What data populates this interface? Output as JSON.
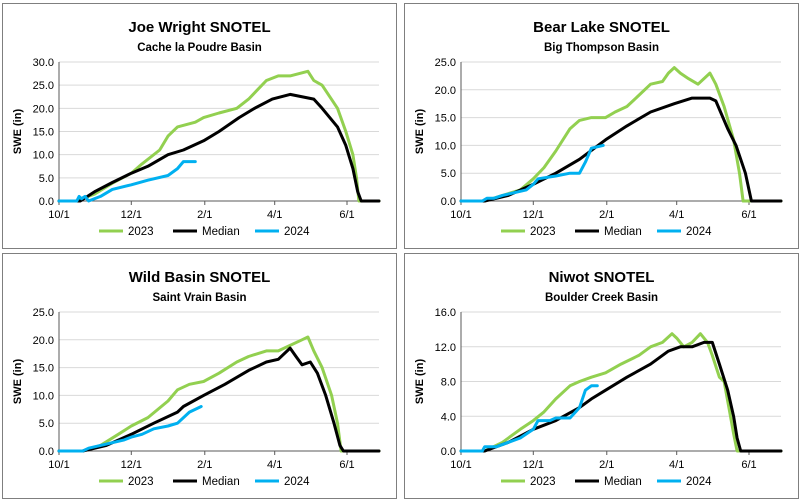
{
  "chart_data": [
    {
      "type": "line",
      "title": "Joe Wright SNOTEL",
      "subtitle": "Cache la Poudre Basin",
      "ylabel": "SWE (in)",
      "ylim": [
        0,
        30
      ],
      "yticks": [
        "0.0",
        "5.0",
        "10.0",
        "15.0",
        "20.0",
        "25.0",
        "30.0"
      ],
      "xlabels": [
        "10/1",
        "12/1",
        "2/1",
        "4/1",
        "6/1"
      ],
      "series": [
        {
          "name": "2023",
          "color": "#92d050",
          "points": [
            [
              0,
              0
            ],
            [
              14,
              0
            ],
            [
              30,
              1.5
            ],
            [
              46,
              4
            ],
            [
              61,
              6
            ],
            [
              70,
              8
            ],
            [
              85,
              11
            ],
            [
              92,
              14
            ],
            [
              100,
              16
            ],
            [
              115,
              17
            ],
            [
              122,
              18
            ],
            [
              135,
              19
            ],
            [
              150,
              20
            ],
            [
              160,
              22
            ],
            [
              175,
              26
            ],
            [
              185,
              27
            ],
            [
              195,
              27
            ],
            [
              210,
              28
            ],
            [
              215,
              26
            ],
            [
              222,
              25
            ],
            [
              235,
              20
            ],
            [
              242,
              15
            ],
            [
              248,
              10
            ],
            [
              251,
              5
            ],
            [
              253,
              0
            ],
            [
              270,
              0
            ]
          ]
        },
        {
          "name": "Median",
          "color": "#000000",
          "points": [
            [
              0,
              0
            ],
            [
              18,
              0
            ],
            [
              30,
              2
            ],
            [
              45,
              4
            ],
            [
              61,
              6
            ],
            [
              75,
              7.5
            ],
            [
              92,
              10
            ],
            [
              105,
              11
            ],
            [
              122,
              13
            ],
            [
              135,
              15
            ],
            [
              152,
              18
            ],
            [
              165,
              20
            ],
            [
              180,
              22
            ],
            [
              195,
              23
            ],
            [
              215,
              22
            ],
            [
              222,
              20
            ],
            [
              235,
              16
            ],
            [
              242,
              12
            ],
            [
              248,
              7
            ],
            [
              252,
              2
            ],
            [
              255,
              0
            ],
            [
              270,
              0
            ]
          ]
        },
        {
          "name": "2024",
          "color": "#00b0f0",
          "points": [
            [
              0,
              0
            ],
            [
              15,
              0
            ],
            [
              17,
              1
            ],
            [
              19,
              0.5
            ],
            [
              22,
              1
            ],
            [
              25,
              0
            ],
            [
              35,
              1
            ],
            [
              45,
              2.5
            ],
            [
              61,
              3.5
            ],
            [
              75,
              4.5
            ],
            [
              92,
              5.5
            ],
            [
              100,
              7
            ],
            [
              105,
              8.5
            ],
            [
              115,
              8.5
            ]
          ]
        }
      ]
    },
    {
      "type": "line",
      "title": "Bear Lake SNOTEL",
      "subtitle": "Big Thompson Basin",
      "ylabel": "SWE (in)",
      "ylim": [
        0,
        25
      ],
      "yticks": [
        "0.0",
        "5.0",
        "10.0",
        "15.0",
        "20.0",
        "25.0"
      ],
      "xlabels": [
        "10/1",
        "12/1",
        "2/1",
        "4/1",
        "6/1"
      ],
      "series": [
        {
          "name": "2023",
          "color": "#92d050",
          "points": [
            [
              0,
              0
            ],
            [
              20,
              0
            ],
            [
              35,
              1
            ],
            [
              50,
              2
            ],
            [
              61,
              4
            ],
            [
              70,
              6
            ],
            [
              80,
              9
            ],
            [
              92,
              13
            ],
            [
              100,
              14.5
            ],
            [
              110,
              15
            ],
            [
              122,
              15
            ],
            [
              130,
              16
            ],
            [
              140,
              17
            ],
            [
              150,
              19
            ],
            [
              160,
              21
            ],
            [
              170,
              21.5
            ],
            [
              175,
              23
            ],
            [
              180,
              24
            ],
            [
              185,
              23
            ],
            [
              192,
              22
            ],
            [
              200,
              21
            ],
            [
              210,
              23
            ],
            [
              215,
              21
            ],
            [
              222,
              17
            ],
            [
              230,
              11
            ],
            [
              235,
              5
            ],
            [
              238,
              0
            ],
            [
              270,
              0
            ]
          ]
        },
        {
          "name": "Median",
          "color": "#000000",
          "points": [
            [
              0,
              0
            ],
            [
              20,
              0
            ],
            [
              40,
              1
            ],
            [
              61,
              3
            ],
            [
              80,
              5
            ],
            [
              100,
              7.5
            ],
            [
              122,
              11
            ],
            [
              140,
              13.5
            ],
            [
              160,
              16
            ],
            [
              180,
              17.5
            ],
            [
              195,
              18.5
            ],
            [
              210,
              18.5
            ],
            [
              215,
              18
            ],
            [
              225,
              13
            ],
            [
              232,
              10
            ],
            [
              240,
              5
            ],
            [
              245,
              0
            ],
            [
              270,
              0
            ]
          ]
        },
        {
          "name": "2024",
          "color": "#00b0f0",
          "points": [
            [
              0,
              0
            ],
            [
              18,
              0
            ],
            [
              22,
              0.5
            ],
            [
              28,
              0.5
            ],
            [
              35,
              1
            ],
            [
              45,
              1.5
            ],
            [
              55,
              2
            ],
            [
              61,
              3
            ],
            [
              65,
              4
            ],
            [
              80,
              4.5
            ],
            [
              92,
              5
            ],
            [
              100,
              5
            ],
            [
              105,
              7
            ],
            [
              110,
              9.5
            ],
            [
              120,
              10
            ]
          ]
        }
      ]
    },
    {
      "type": "line",
      "title": "Wild Basin SNOTEL",
      "subtitle": "Saint Vrain Basin",
      "ylabel": "SWE (in)",
      "ylim": [
        0,
        25
      ],
      "yticks": [
        "0.0",
        "5.0",
        "10.0",
        "15.0",
        "20.0",
        "25.0"
      ],
      "xlabels": [
        "10/1",
        "12/1",
        "2/1",
        "4/1",
        "6/1"
      ],
      "series": [
        {
          "name": "2023",
          "color": "#92d050",
          "points": [
            [
              0,
              0
            ],
            [
              20,
              0
            ],
            [
              35,
              1
            ],
            [
              50,
              3
            ],
            [
              61,
              4.5
            ],
            [
              75,
              6
            ],
            [
              92,
              9
            ],
            [
              100,
              11
            ],
            [
              110,
              12
            ],
            [
              122,
              12.5
            ],
            [
              135,
              14
            ],
            [
              150,
              16
            ],
            [
              160,
              17
            ],
            [
              175,
              18
            ],
            [
              185,
              18
            ],
            [
              195,
              19
            ],
            [
              205,
              20
            ],
            [
              210,
              20.5
            ],
            [
              215,
              18
            ],
            [
              222,
              15
            ],
            [
              230,
              10
            ],
            [
              235,
              5
            ],
            [
              238,
              0
            ],
            [
              270,
              0
            ]
          ]
        },
        {
          "name": "Median",
          "color": "#000000",
          "points": [
            [
              0,
              0
            ],
            [
              20,
              0
            ],
            [
              40,
              1
            ],
            [
              61,
              3
            ],
            [
              80,
              5
            ],
            [
              100,
              7
            ],
            [
              105,
              8
            ],
            [
              122,
              10
            ],
            [
              140,
              12
            ],
            [
              160,
              14.5
            ],
            [
              175,
              16
            ],
            [
              185,
              16.5
            ],
            [
              195,
              18.5
            ],
            [
              200,
              17
            ],
            [
              205,
              15.5
            ],
            [
              212,
              16
            ],
            [
              218,
              14
            ],
            [
              225,
              10
            ],
            [
              232,
              5
            ],
            [
              237,
              1
            ],
            [
              240,
              0
            ],
            [
              270,
              0
            ]
          ]
        },
        {
          "name": "2024",
          "color": "#00b0f0",
          "points": [
            [
              0,
              0
            ],
            [
              20,
              0
            ],
            [
              25,
              0.5
            ],
            [
              35,
              1
            ],
            [
              45,
              1.5
            ],
            [
              55,
              2
            ],
            [
              61,
              2.5
            ],
            [
              70,
              3
            ],
            [
              80,
              4
            ],
            [
              92,
              4.5
            ],
            [
              100,
              5
            ],
            [
              110,
              7
            ],
            [
              120,
              8
            ]
          ]
        }
      ]
    },
    {
      "type": "line",
      "title": "Niwot SNOTEL",
      "subtitle": "Boulder Creek Basin",
      "ylabel": "SWE (in)",
      "ylim": [
        0,
        16
      ],
      "yticks": [
        "0.0",
        "4.0",
        "8.0",
        "12.0",
        "16.0"
      ],
      "xlabels": [
        "10/1",
        "12/1",
        "2/1",
        "4/1",
        "6/1"
      ],
      "series": [
        {
          "name": "2023",
          "color": "#92d050",
          "points": [
            [
              0,
              0
            ],
            [
              20,
              0
            ],
            [
              35,
              1
            ],
            [
              50,
              2.5
            ],
            [
              61,
              3.5
            ],
            [
              70,
              4.5
            ],
            [
              80,
              6
            ],
            [
              92,
              7.5
            ],
            [
              100,
              8
            ],
            [
              110,
              8.5
            ],
            [
              122,
              9
            ],
            [
              135,
              10
            ],
            [
              150,
              11
            ],
            [
              160,
              12
            ],
            [
              170,
              12.5
            ],
            [
              178,
              13.5
            ],
            [
              182,
              13
            ],
            [
              188,
              12
            ],
            [
              195,
              12.5
            ],
            [
              202,
              13.5
            ],
            [
              208,
              12.5
            ],
            [
              212,
              11
            ],
            [
              218,
              8.5
            ],
            [
              222,
              8
            ],
            [
              226,
              5
            ],
            [
              230,
              2
            ],
            [
              233,
              0
            ],
            [
              270,
              0
            ]
          ]
        },
        {
          "name": "Median",
          "color": "#000000",
          "points": [
            [
              0,
              0
            ],
            [
              20,
              0
            ],
            [
              40,
              1
            ],
            [
              61,
              2.5
            ],
            [
              80,
              3.5
            ],
            [
              100,
              5
            ],
            [
              110,
              6
            ],
            [
              122,
              7
            ],
            [
              140,
              8.5
            ],
            [
              160,
              10
            ],
            [
              175,
              11.5
            ],
            [
              185,
              12
            ],
            [
              195,
              12
            ],
            [
              205,
              12.5
            ],
            [
              212,
              12.5
            ],
            [
              218,
              10
            ],
            [
              225,
              7
            ],
            [
              230,
              4
            ],
            [
              233,
              1.5
            ],
            [
              236,
              0
            ],
            [
              270,
              0
            ]
          ]
        },
        {
          "name": "2024",
          "color": "#00b0f0",
          "points": [
            [
              0,
              0
            ],
            [
              18,
              0
            ],
            [
              20,
              0.5
            ],
            [
              30,
              0.5
            ],
            [
              40,
              1
            ],
            [
              50,
              1.5
            ],
            [
              61,
              2.5
            ],
            [
              65,
              3.5
            ],
            [
              75,
              3.5
            ],
            [
              80,
              3.8
            ],
            [
              92,
              3.8
            ],
            [
              100,
              5
            ],
            [
              105,
              7
            ],
            [
              110,
              7.5
            ],
            [
              115,
              7.5
            ]
          ]
        }
      ]
    }
  ]
}
